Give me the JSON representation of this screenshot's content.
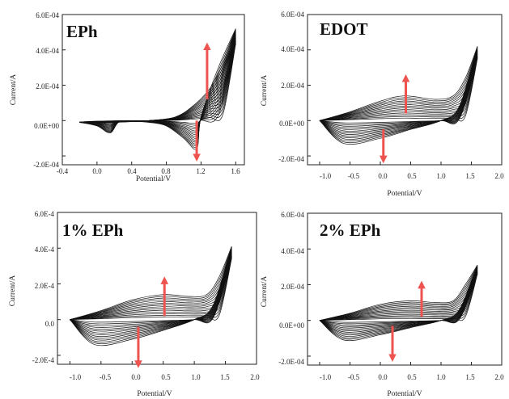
{
  "colors": {
    "curve": "#111111",
    "arrow": "#ef5350",
    "axis": "#222222"
  },
  "chart_data": [
    {
      "type": "line",
      "title": "EPh",
      "xlabel": "Potential/V",
      "ylabel": "Current/A",
      "xlim": [
        -0.4,
        1.7
      ],
      "ylim": [
        -0.00025,
        0.0006
      ],
      "x_ticks": [
        -0.4,
        0.0,
        0.4,
        0.8,
        1.2,
        1.6
      ],
      "x_tick_labels": [
        "-0.4",
        "0.0",
        "0.4",
        "0.8",
        "1.2",
        "1.6"
      ],
      "y_ticks": [
        -0.0002,
        0.0,
        0.0002,
        0.0004,
        0.0006
      ],
      "y_tick_labels": [
        "-2.0E-04",
        "0.0E+00",
        "2.0E-04",
        "4.0E-04",
        "6.0E-04"
      ],
      "cycles": 15,
      "series": [
        {
          "x": [
            -0.2,
            0.2,
            0.6,
            0.9,
            1.1,
            1.3,
            1.45,
            1.6
          ],
          "y": [
            -1e-05,
            -1e-05,
            0.0,
            2e-05,
            8e-05,
            0.00018,
            0.00032,
            0.00052
          ]
        },
        {
          "x": [
            1.6,
            1.4,
            1.2,
            1.15,
            1.0,
            0.8,
            0.6,
            0.4,
            0.25,
            0.15,
            0.0,
            -0.2
          ],
          "y": [
            0.00052,
            0.0003,
            2e-05,
            -0.00016,
            -0.0001,
            -3e-05,
            -1e-05,
            -5e-06,
            -1e-05,
            -7e-05,
            -3e-05,
            -1e-05
          ]
        }
      ],
      "annotations": [
        {
          "type": "arrow",
          "direction": "up",
          "x": 1.27,
          "y_from": 0.00012,
          "y_to": 0.00042
        },
        {
          "type": "arrow",
          "direction": "down",
          "x": 1.15,
          "y_from": 0.0,
          "y_to": -0.00021
        }
      ]
    },
    {
      "type": "line",
      "title": "EDOT",
      "xlabel": "Potential/V",
      "ylabel": "Current/A",
      "xlim": [
        -1.2,
        2.0
      ],
      "ylim": [
        -0.00025,
        0.0006
      ],
      "x_ticks": [
        -1.0,
        -0.5,
        0.0,
        0.5,
        1.0,
        1.5,
        2.0
      ],
      "x_tick_labels": [
        "-1.0",
        "-0.5",
        "0.0",
        "0.5",
        "1.0",
        "1.5",
        "2.0"
      ],
      "y_ticks": [
        -0.0002,
        0.0,
        0.0002,
        0.0004,
        0.0006
      ],
      "y_tick_labels": [
        "-2.0E-04",
        "0.0E+00",
        "2.0E-04",
        "4.0E-04",
        "6.0E-04"
      ],
      "cycles": 14,
      "series": [
        {
          "x": [
            -1.0,
            -0.5,
            0.0,
            0.4,
            0.9,
            1.2,
            1.4,
            1.6
          ],
          "y": [
            0.0,
            5e-05,
            0.00011,
            0.00014,
            0.00012,
            0.00014,
            0.00024,
            0.00042
          ]
        },
        {
          "x": [
            1.6,
            1.3,
            1.0,
            0.5,
            0.0,
            -0.6,
            -1.0
          ],
          "y": [
            0.00042,
            8e-05,
            0.0,
            -5e-05,
            -0.0001,
            -0.00013,
            0.0
          ]
        }
      ],
      "annotations": [
        {
          "type": "arrow",
          "direction": "up",
          "x": 0.42,
          "y_from": 4e-05,
          "y_to": 0.00024
        },
        {
          "type": "arrow",
          "direction": "down",
          "x": 0.05,
          "y_from": -5e-05,
          "y_to": -0.00022
        }
      ]
    },
    {
      "type": "line",
      "title": "1% EPh",
      "xlabel": "Potential/V",
      "ylabel": "Current/A",
      "xlim": [
        -1.2,
        2.0
      ],
      "ylim": [
        -0.00025,
        0.0006
      ],
      "x_ticks": [
        -1.0,
        -0.5,
        0.0,
        0.5,
        1.0,
        1.5,
        2.0
      ],
      "x_tick_labels": [
        "-1.0",
        "-0.5",
        "0.0",
        "0.5",
        "1.0",
        "1.5",
        "2.0"
      ],
      "y_ticks": [
        -0.0002,
        0.0,
        0.0002,
        0.0004,
        0.0006
      ],
      "y_tick_labels": [
        "-2.0E-4",
        "0.0",
        "2.0E-4",
        "4.0E-4",
        "6.0E-4"
      ],
      "cycles": 14,
      "series": [
        {
          "x": [
            -1.0,
            -0.5,
            0.0,
            0.5,
            0.9,
            1.2,
            1.4,
            1.6
          ],
          "y": [
            0.0,
            5e-05,
            0.00011,
            0.00014,
            0.00013,
            0.00014,
            0.00024,
            0.00041
          ]
        },
        {
          "x": [
            1.6,
            1.3,
            1.0,
            0.5,
            0.0,
            -0.6,
            -1.0
          ],
          "y": [
            0.00041,
            8e-05,
            0.0,
            -6e-05,
            -0.00011,
            -0.00014,
            0.0
          ]
        }
      ],
      "annotations": [
        {
          "type": "arrow",
          "direction": "up",
          "x": 0.52,
          "y_from": 2e-05,
          "y_to": 0.00022
        },
        {
          "type": "arrow",
          "direction": "down",
          "x": 0.1,
          "y_from": -4e-05,
          "y_to": -0.00025
        }
      ]
    },
    {
      "type": "line",
      "title": "2% EPh",
      "xlabel": "Potential/V",
      "ylabel": "Current/A",
      "xlim": [
        -1.2,
        2.0
      ],
      "ylim": [
        -0.00025,
        0.0006
      ],
      "x_ticks": [
        -1.0,
        -0.5,
        0.0,
        0.5,
        1.0,
        1.5,
        2.0
      ],
      "x_tick_labels": [
        "-1.0",
        "-0.5",
        "0.0",
        "0.5",
        "1.0",
        "1.5",
        "2.0"
      ],
      "y_ticks": [
        -0.0002,
        0.0,
        0.0002,
        0.0004,
        0.0006
      ],
      "y_tick_labels": [
        "-2.0E-04",
        "0.0E+00",
        "2.0E-04",
        "4.0E-04",
        "6.0E-04"
      ],
      "cycles": 14,
      "series": [
        {
          "x": [
            -1.0,
            -0.5,
            0.0,
            0.5,
            0.9,
            1.2,
            1.4,
            1.6
          ],
          "y": [
            0.0,
            4e-05,
            9e-05,
            0.00011,
            0.0001,
            0.00011,
            0.0002,
            0.00031
          ]
        },
        {
          "x": [
            1.6,
            1.3,
            1.0,
            0.5,
            0.0,
            -0.6,
            -1.0
          ],
          "y": [
            0.00031,
            6e-05,
            0.0,
            -4e-05,
            -8e-05,
            -0.00011,
            0.0
          ]
        }
      ],
      "annotations": [
        {
          "type": "arrow",
          "direction": "up",
          "x": 0.68,
          "y_from": 2e-05,
          "y_to": 0.0002
        },
        {
          "type": "arrow",
          "direction": "down",
          "x": 0.2,
          "y_from": -3e-05,
          "y_to": -0.00021
        }
      ]
    }
  ]
}
